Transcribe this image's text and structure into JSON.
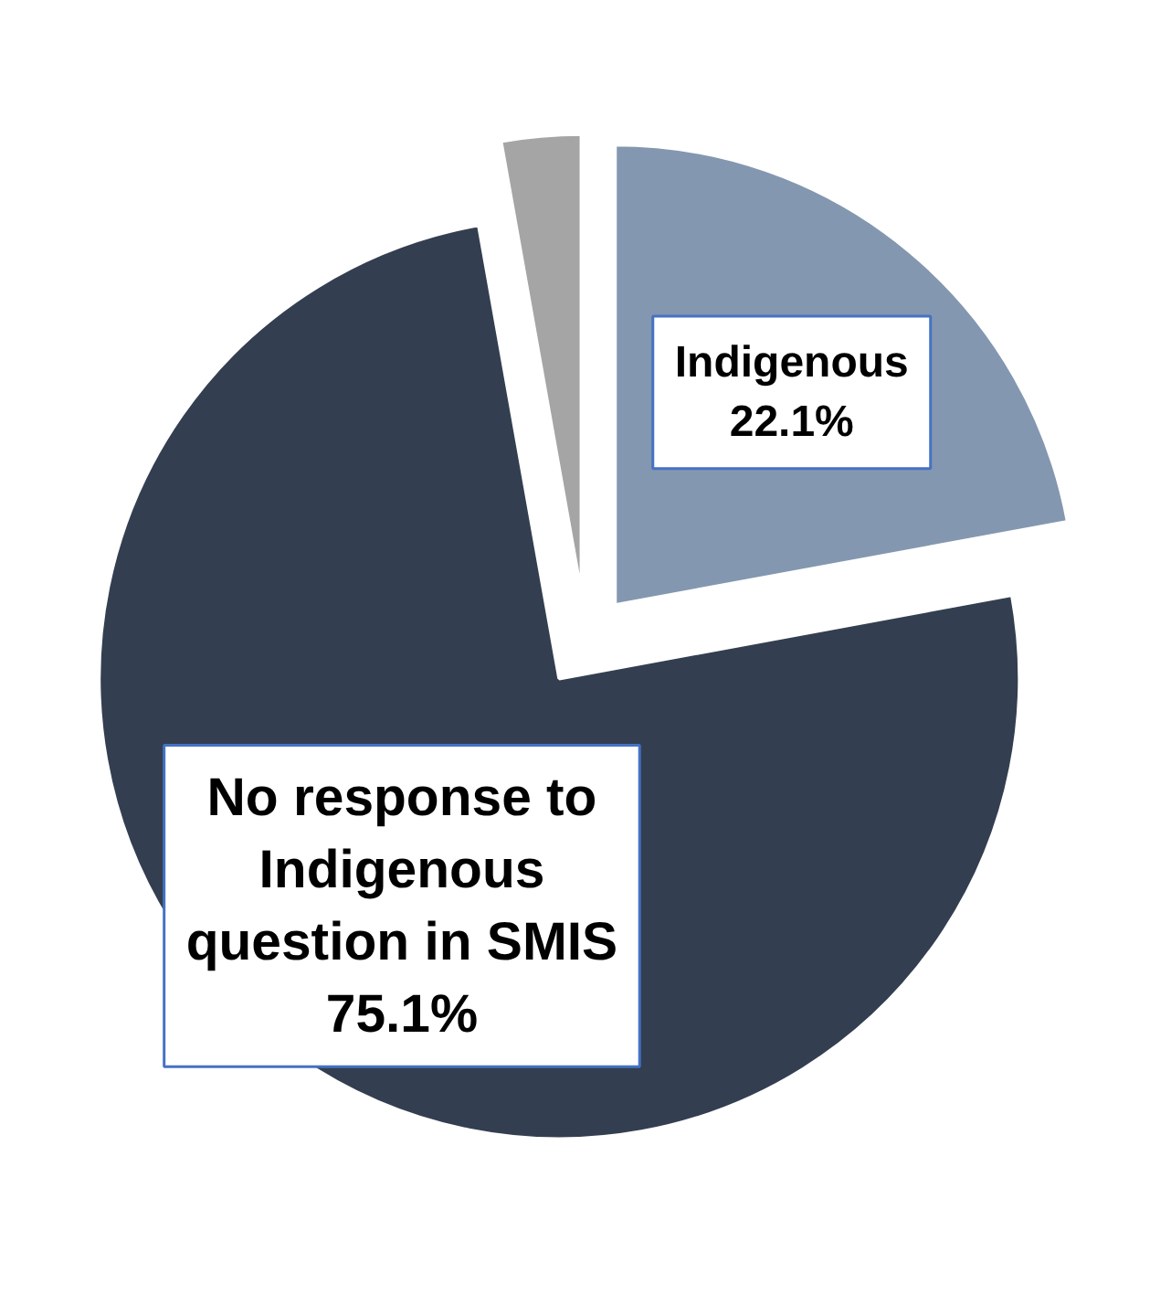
{
  "chart_data": {
    "type": "pie",
    "categories": [
      "Indigenous",
      "No response to Indigenous question in SMIS",
      null
    ],
    "values": [
      22.1,
      75.1,
      2.8
    ],
    "colors": [
      "#8497b0",
      "#333f50",
      "#a5a5a5"
    ],
    "value_labels": [
      "22.1%",
      "75.1%",
      null
    ]
  }
}
